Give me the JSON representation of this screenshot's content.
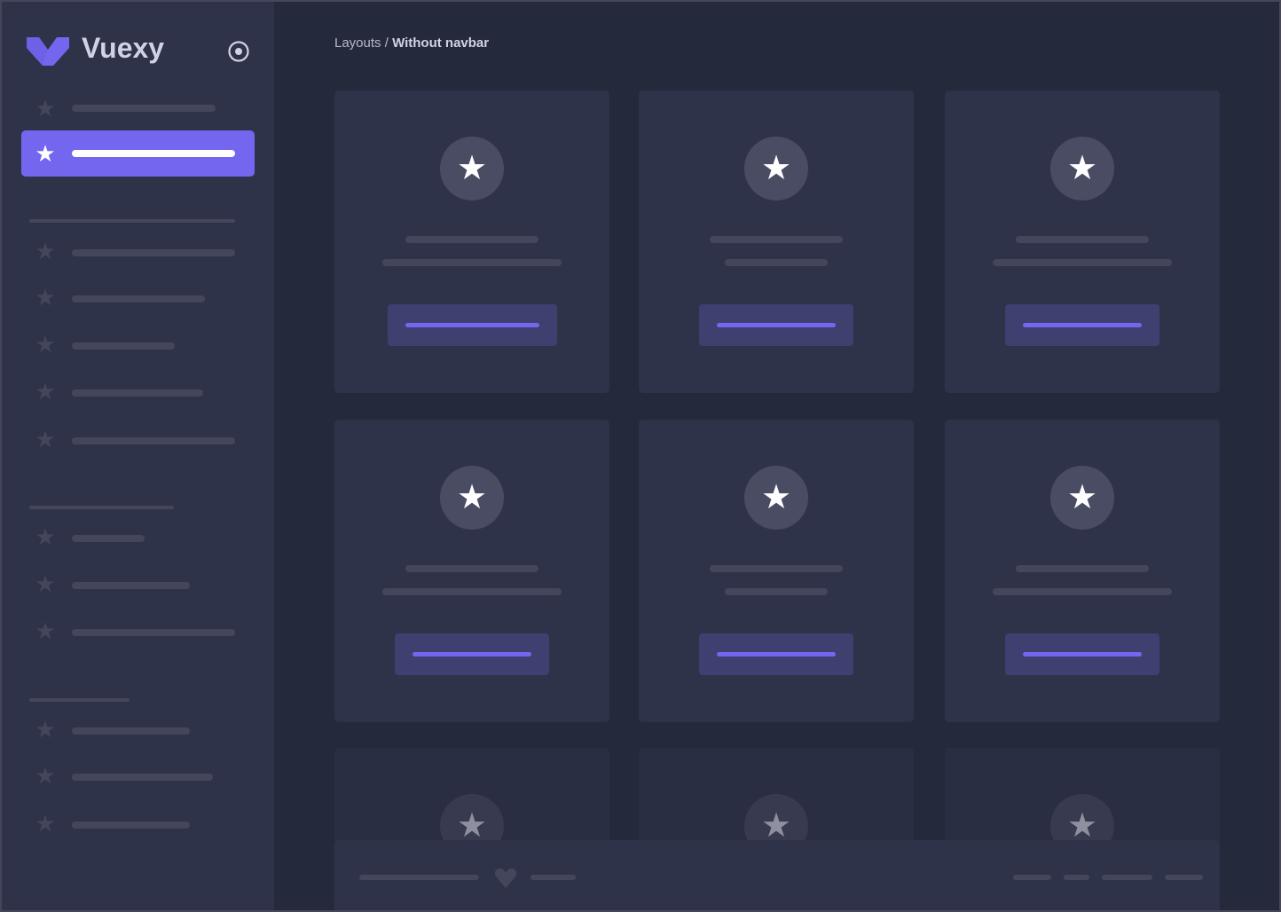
{
  "brand": {
    "name": "Vuexy",
    "logo_color": "#7367f0"
  },
  "sidebar": {
    "toggle_icon": "radio-circle-icon",
    "active_color": "#7367f0",
    "item_icon": "star-icon"
  },
  "breadcrumb": {
    "parent": "Layouts",
    "separator": " / ",
    "current": "Without navbar"
  },
  "cards": {
    "icon": "star-icon",
    "count": 9
  },
  "footer": {
    "icon": "heart-icon"
  },
  "colors": {
    "background": "#25293c",
    "surface": "#2f3349",
    "accent": "#7367f0"
  }
}
